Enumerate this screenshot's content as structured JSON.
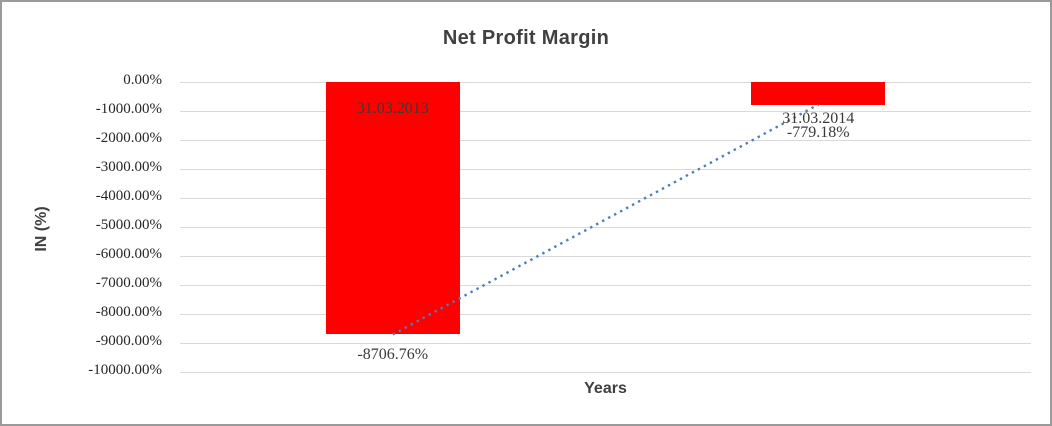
{
  "window": {
    "background": "#ffffff",
    "border_color": "#9a9a9a"
  },
  "chart_data": {
    "type": "bar",
    "title": "Net Profit Margin",
    "xlabel": "Years",
    "ylabel": "IN (%)",
    "categories": [
      "31.03.2013",
      "31.03.2014"
    ],
    "series": [
      {
        "name": "Net Profit Margin",
        "values": [
          -8706.76,
          -779.18
        ]
      }
    ],
    "value_labels": [
      "-8706.76%",
      "-779.18%"
    ],
    "ylim": [
      -10000,
      0
    ],
    "y_tick_values": [
      0,
      -1000,
      -2000,
      -3000,
      -4000,
      -5000,
      -6000,
      -7000,
      -8000,
      -9000,
      -10000
    ],
    "y_tick_labels": [
      "0.00%",
      "-1000.00%",
      "-2000.00%",
      "-3000.00%",
      "-4000.00%",
      "-5000.00%",
      "-6000.00%",
      "-7000.00%",
      "-8000.00%",
      "-9000.00%",
      "-10000.00%"
    ],
    "grid": true,
    "legend": "none",
    "bar_color": "#ff0000",
    "gridline_color": "#d9d9d9",
    "text_color": "#3a3a3a",
    "trendline": {
      "type": "linear",
      "style": "dotted",
      "color": "#4a7ebb",
      "points": [
        -8706.76,
        -779.18
      ]
    }
  }
}
